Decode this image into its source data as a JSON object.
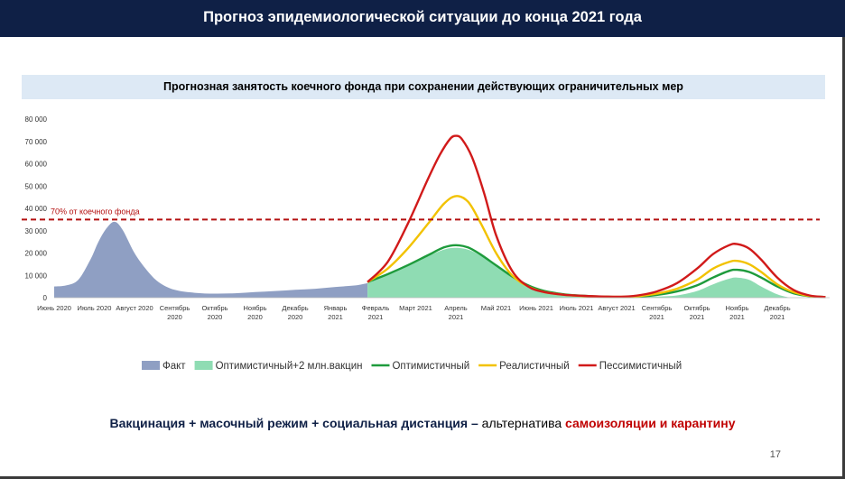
{
  "header": {
    "title": "Прогноз эпидемиологической ситуации до конца 2021 года"
  },
  "footer": {
    "part1": "Вакцинация + масочный режим + социальная дистанция",
    "dash": " – ",
    "part2": "альтернатива ",
    "part3": "самоизоляции и карантину",
    "page": "17"
  },
  "colors": {
    "fact": "#8f9fc3",
    "opt_vacc": "#8fdcb3",
    "optimistic": "#1e9b3c",
    "realistic": "#f2c200",
    "pessimistic": "#d11a1a",
    "threshold": "#b41010",
    "header_bg": "#0f2046"
  },
  "chart_data": {
    "type": "area",
    "title": "Прогнозная занятость коечного фонда при сохранении действующих ограничительных мер",
    "xlabel": "",
    "ylabel": "",
    "ylim": [
      0,
      80000
    ],
    "y_ticks": [
      "0",
      "10 000",
      "20 000",
      "30 000",
      "40 000",
      "50 000",
      "60 000",
      "70 000",
      "80 000"
    ],
    "x_range": [
      0,
      19.6
    ],
    "x_ticks": [
      {
        "x": 0,
        "label": [
          "Июнь 2020"
        ]
      },
      {
        "x": 1,
        "label": [
          "Июль 2020"
        ]
      },
      {
        "x": 2,
        "label": [
          "Август 2020"
        ]
      },
      {
        "x": 3,
        "label": [
          "Сентябрь",
          "2020"
        ]
      },
      {
        "x": 4,
        "label": [
          "Октябрь",
          "2020"
        ]
      },
      {
        "x": 5,
        "label": [
          "Ноябрь",
          "2020"
        ]
      },
      {
        "x": 6,
        "label": [
          "Декабрь",
          "2020"
        ]
      },
      {
        "x": 7,
        "label": [
          "Январь",
          "2021"
        ]
      },
      {
        "x": 8,
        "label": [
          "Февраль",
          "2021"
        ]
      },
      {
        "x": 9,
        "label": [
          "Март 2021"
        ]
      },
      {
        "x": 10,
        "label": [
          "Апрель",
          "2021"
        ]
      },
      {
        "x": 11,
        "label": [
          "Май 2021"
        ]
      },
      {
        "x": 12,
        "label": [
          "Июнь 2021"
        ]
      },
      {
        "x": 13,
        "label": [
          "Июль 2021"
        ]
      },
      {
        "x": 14,
        "label": [
          "Август 2021"
        ]
      },
      {
        "x": 15,
        "label": [
          "Сентябрь",
          "2021"
        ]
      },
      {
        "x": 16,
        "label": [
          "Октябрь",
          "2021"
        ]
      },
      {
        "x": 17,
        "label": [
          "Ноябрь",
          "2021"
        ]
      },
      {
        "x": 18,
        "label": [
          "Декабрь",
          "2021"
        ]
      }
    ],
    "threshold": {
      "value": 35000,
      "label": "70% от коечного фонда"
    },
    "legend": {
      "placement": "bottom"
    },
    "series": [
      {
        "name": "Факт",
        "kind": "bar_area",
        "color": "#8f9fc3",
        "x": [
          0,
          0.3,
          0.6,
          0.9,
          1.1,
          1.3,
          1.5,
          1.7,
          2.0,
          2.3,
          2.6,
          3.0,
          3.5,
          4.0,
          4.5,
          5.0,
          5.5,
          6.0,
          6.5,
          7.0,
          7.5,
          7.8
        ],
        "y": [
          5000,
          5500,
          8000,
          17000,
          25000,
          31000,
          34000,
          30500,
          20000,
          12500,
          7000,
          3500,
          2200,
          1800,
          2000,
          2500,
          3000,
          3500,
          4000,
          4800,
          5500,
          6500
        ]
      },
      {
        "name": "Оптимистичный+2 млн.вакцин",
        "kind": "area",
        "color": "#8fdcb3",
        "x": [
          7.8,
          8.3,
          8.8,
          9.3,
          9.7,
          10.0,
          10.3,
          10.6,
          11.0,
          11.4,
          11.8,
          12.2,
          12.7,
          13.2,
          13.7,
          14.2,
          14.6,
          15.0,
          15.5,
          16.0,
          16.4,
          16.8,
          17.0,
          17.3,
          17.6,
          18.0,
          18.3
        ],
        "y": [
          6500,
          10000,
          14000,
          18500,
          21500,
          22300,
          21500,
          19000,
          14500,
          10000,
          6000,
          3000,
          1500,
          800,
          400,
          200,
          200,
          500,
          1000,
          3000,
          6000,
          8500,
          9000,
          8000,
          5000,
          1500,
          0
        ]
      },
      {
        "name": "Оптимистичный",
        "kind": "line",
        "color": "#1e9b3c",
        "x": [
          7.8,
          8.3,
          8.8,
          9.3,
          9.7,
          10.0,
          10.3,
          10.6,
          11.0,
          11.4,
          11.8,
          12.2,
          12.7,
          13.2,
          13.7,
          14.2,
          14.6,
          15.0,
          15.5,
          16.0,
          16.4,
          16.8,
          17.0,
          17.3,
          17.6,
          18.0,
          18.4,
          18.8,
          19.2
        ],
        "y": [
          7000,
          10500,
          14500,
          19000,
          22500,
          23500,
          22500,
          19500,
          14500,
          9500,
          5500,
          3000,
          1500,
          800,
          400,
          300,
          500,
          1200,
          2800,
          5500,
          9000,
          12000,
          12500,
          11500,
          9000,
          5000,
          2000,
          700,
          300
        ]
      },
      {
        "name": "Реалистичный",
        "kind": "line",
        "color": "#f2c200",
        "x": [
          7.8,
          8.3,
          8.8,
          9.3,
          9.7,
          10.0,
          10.3,
          10.6,
          11.0,
          11.4,
          11.8,
          12.2,
          12.7,
          13.2,
          13.7,
          14.2,
          14.6,
          15.0,
          15.5,
          16.0,
          16.4,
          16.8,
          17.0,
          17.3,
          17.6,
          18.0,
          18.4,
          18.8,
          19.2
        ],
        "y": [
          7000,
          13000,
          22000,
          33000,
          42000,
          45500,
          43000,
          34000,
          20000,
          10000,
          5000,
          2500,
          1300,
          700,
          400,
          400,
          800,
          1800,
          4000,
          8000,
          13000,
          16000,
          16500,
          15000,
          11500,
          6000,
          2500,
          800,
          300
        ]
      },
      {
        "name": "Пессимистичный",
        "kind": "line",
        "color": "#d11a1a",
        "x": [
          7.8,
          8.3,
          8.8,
          9.3,
          9.6,
          9.85,
          10.0,
          10.15,
          10.4,
          10.7,
          11.0,
          11.4,
          11.8,
          12.2,
          12.7,
          13.2,
          13.7,
          14.2,
          14.6,
          15.0,
          15.5,
          16.0,
          16.4,
          16.8,
          17.0,
          17.3,
          17.6,
          18.0,
          18.4,
          18.8,
          19.2
        ],
        "y": [
          7000,
          16000,
          33000,
          53000,
          64000,
          71000,
          72500,
          71000,
          63000,
          47000,
          28000,
          12000,
          5000,
          2500,
          1300,
          800,
          500,
          500,
          1200,
          2800,
          6500,
          13000,
          19500,
          23500,
          24000,
          22000,
          17000,
          9000,
          3500,
          1000,
          300
        ]
      }
    ]
  }
}
